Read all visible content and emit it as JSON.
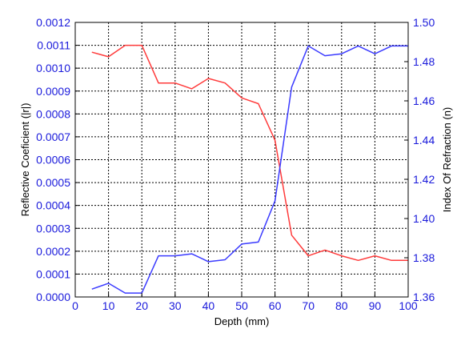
{
  "chart_data": {
    "type": "line",
    "title": "",
    "xlabel": "Depth (mm)",
    "ylabel_left": "Reflective Coeficient (|r|)",
    "ylabel_right": "Index Of Refraction (n)",
    "xlim": [
      0,
      100
    ],
    "ylim_left": [
      0,
      0.0012
    ],
    "ylim_right": [
      1.36,
      1.5
    ],
    "x_ticks": [
      "0",
      "10",
      "20",
      "30",
      "40",
      "50",
      "60",
      "70",
      "80",
      "90",
      "100"
    ],
    "y_left_ticks": [
      "0.0000",
      "0.0001",
      "0.0002",
      "0.0003",
      "0.0004",
      "0.0005",
      "0.0006",
      "0.0007",
      "0.0008",
      "0.0009",
      "0.0010",
      "0.0011",
      "0.0012"
    ],
    "y_right_ticks": [
      "1.36",
      "1.38",
      "1.40",
      "1.42",
      "1.44",
      "1.46",
      "1.48",
      "1.50"
    ],
    "grid": true,
    "tick_color": "#1a1adb",
    "series": [
      {
        "axis": "left",
        "color": "#ff3b3b",
        "x": [
          5,
          10,
          15,
          20,
          25,
          30,
          35,
          40,
          45,
          50,
          55,
          60,
          65,
          70,
          75,
          80,
          85,
          90,
          95,
          100
        ],
        "values": [
          0.00107,
          0.00105,
          0.0011,
          0.0011,
          0.000935,
          0.000935,
          0.00091,
          0.000955,
          0.000935,
          0.00087,
          0.000845,
          0.000685,
          0.00027,
          0.00018,
          0.000205,
          0.00018,
          0.00016,
          0.00018,
          0.00016,
          0.00016
        ]
      },
      {
        "axis": "right",
        "color": "#3b3bff",
        "x": [
          5,
          10,
          15,
          20,
          25,
          30,
          35,
          40,
          45,
          50,
          55,
          60,
          65,
          70,
          75,
          80,
          85,
          90,
          95,
          100
        ],
        "values": [
          1.364,
          1.367,
          1.362,
          1.362,
          1.381,
          1.381,
          1.382,
          1.378,
          1.379,
          1.387,
          1.388,
          1.409,
          1.467,
          1.488,
          1.483,
          1.484,
          1.488,
          1.484,
          1.488,
          1.488
        ]
      }
    ]
  }
}
